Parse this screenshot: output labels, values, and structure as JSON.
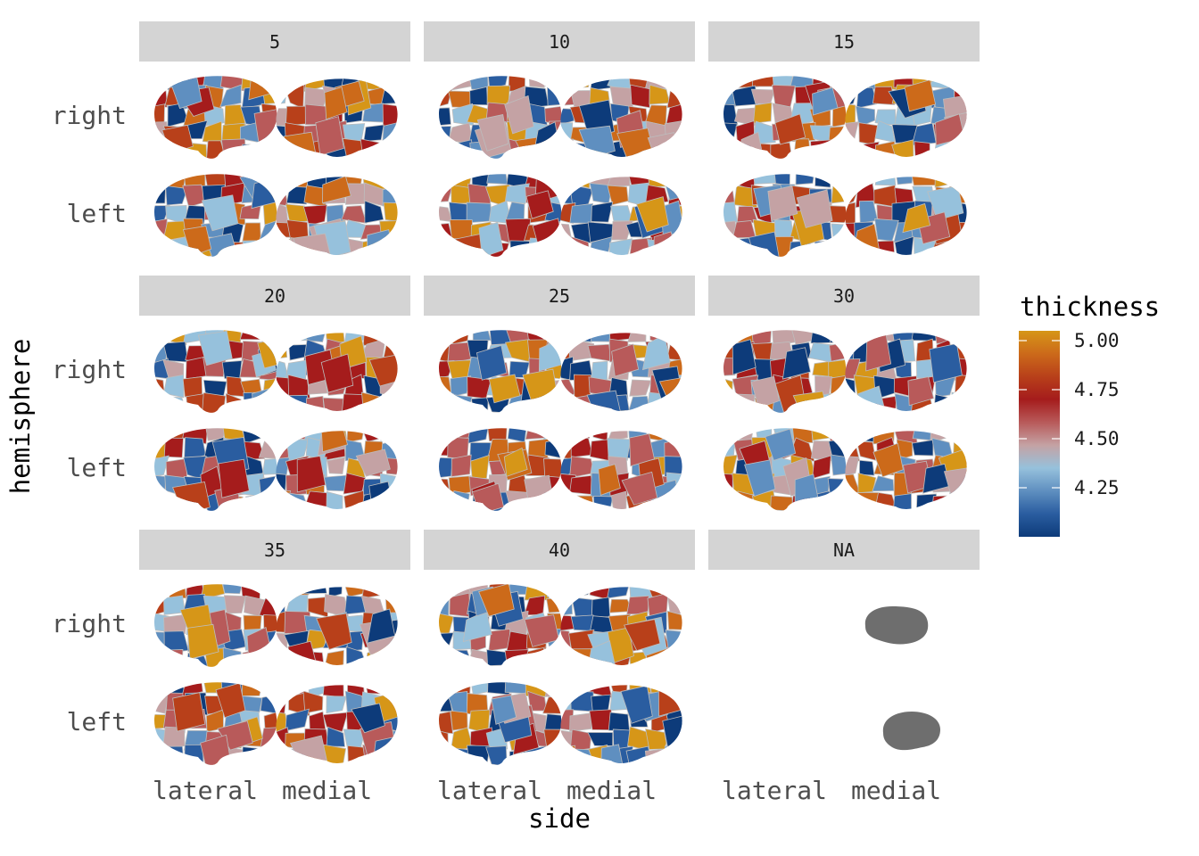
{
  "chart_data": {
    "type": "heatmap",
    "subtype": "brain-atlas-facets",
    "facet_variable_values": [
      "5",
      "10",
      "15",
      "20",
      "25",
      "30",
      "35",
      "40",
      "NA"
    ],
    "row_labels": [
      "right",
      "left"
    ],
    "col_labels": [
      "lateral",
      "medial"
    ],
    "xlabel": "side",
    "ylabel": "hemisphere",
    "legend": {
      "title": "thickness",
      "ticks": [
        "5.00",
        "4.75",
        "4.50",
        "4.25"
      ],
      "tick_values": [
        5.0,
        4.75,
        4.5,
        4.25
      ],
      "range": [
        4.0,
        5.05
      ],
      "placement": "right",
      "colors": [
        "#0d3b7a",
        "#2a5da0",
        "#5f8fc0",
        "#96c1dc",
        "#c4a2a4",
        "#b85a5a",
        "#a51c1c",
        "#b8401a",
        "#cc6a1a",
        "#d69618"
      ]
    },
    "na_color": "#6e6e6e",
    "strip_color": "#d4d4d4"
  }
}
